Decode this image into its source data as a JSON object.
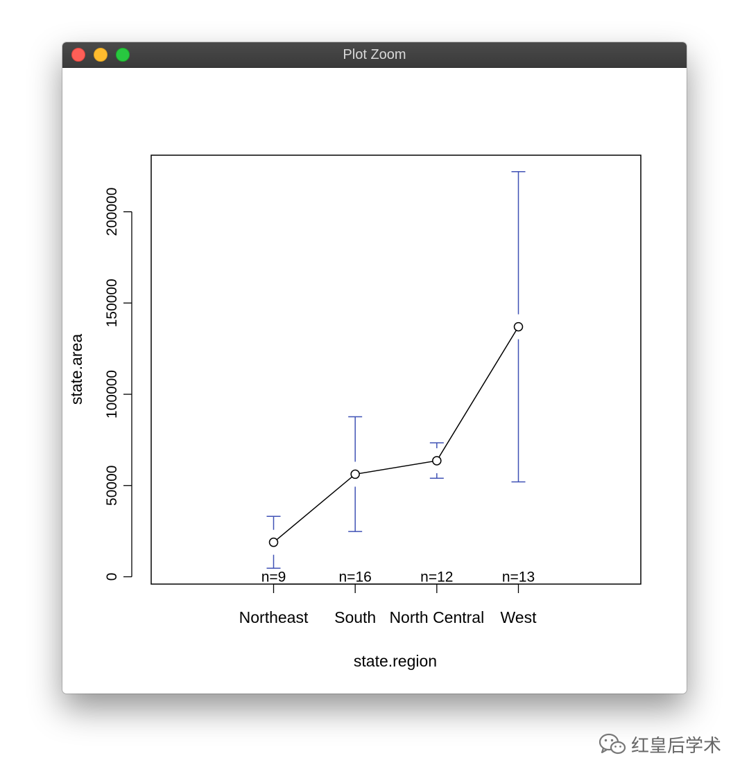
{
  "window": {
    "title": "Plot Zoom",
    "buttons": [
      "close",
      "minimize",
      "zoom"
    ]
  },
  "chart_data": {
    "type": "line",
    "xlabel": "state.region",
    "ylabel": "state.area",
    "categories": [
      "Northeast",
      "South",
      "North Central",
      "West"
    ],
    "n_labels": [
      "n=9",
      "n=16",
      "n=12",
      "n=13"
    ],
    "means": [
      18900,
      56200,
      63600,
      137000
    ],
    "ci_lower": [
      4700,
      24800,
      54000,
      52000
    ],
    "ci_upper": [
      33100,
      87700,
      73400,
      222000
    ],
    "ylim": [
      -4000,
      231000
    ],
    "yticks": [
      0,
      50000,
      100000,
      150000,
      200000
    ],
    "colors": {
      "error_bars": "#3f51b5",
      "line": "#000000"
    }
  },
  "watermark": {
    "icon": "wechat-icon",
    "text": "红皇后学术"
  }
}
